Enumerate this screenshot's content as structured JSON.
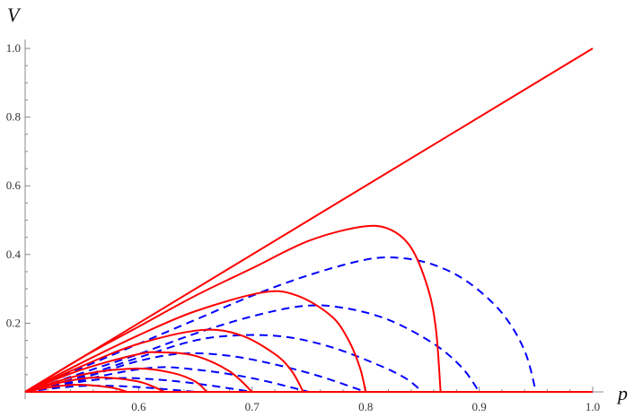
{
  "chart_data": {
    "type": "line",
    "title": "",
    "xlabel": "p",
    "ylabel": "V",
    "xlim": [
      0.5,
      1.0
    ],
    "ylim": [
      0,
      1.0
    ],
    "x_ticks": [
      "0.6",
      "0.7",
      "0.8",
      "0.9",
      "1.0"
    ],
    "y_ticks": [
      "0.2",
      "0.4",
      "0.6",
      "0.8",
      "1.0"
    ],
    "grid": false,
    "colors": {
      "solid": "#ff0000",
      "dashed": "#0000ff",
      "axis": "#888888"
    },
    "series": [
      {
        "style": "solid",
        "color": "#ff0000",
        "points": [
          [
            0.5,
            0
          ],
          [
            1.0,
            1.0
          ]
        ]
      },
      {
        "style": "solid",
        "color": "#ff0000",
        "points": [
          [
            0.5,
            0
          ],
          [
            1.0,
            0
          ]
        ]
      },
      {
        "style": "solid",
        "color": "#ff0000",
        "points": [
          [
            0.5,
            0
          ],
          [
            0.55,
            0.1
          ],
          [
            0.6,
            0.19
          ],
          [
            0.65,
            0.28
          ],
          [
            0.7,
            0.36
          ],
          [
            0.75,
            0.44
          ],
          [
            0.795,
            0.48
          ],
          [
            0.82,
            0.475
          ],
          [
            0.84,
            0.42
          ],
          [
            0.855,
            0.3
          ],
          [
            0.862,
            0.18
          ],
          [
            0.866,
            0
          ]
        ]
      },
      {
        "style": "solid",
        "color": "#ff0000",
        "points": [
          [
            0.5,
            0
          ],
          [
            0.55,
            0.085
          ],
          [
            0.6,
            0.165
          ],
          [
            0.65,
            0.235
          ],
          [
            0.71,
            0.29
          ],
          [
            0.74,
            0.28
          ],
          [
            0.77,
            0.22
          ],
          [
            0.785,
            0.15
          ],
          [
            0.795,
            0.07
          ],
          [
            0.8,
            0
          ]
        ]
      },
      {
        "style": "solid",
        "color": "#ff0000",
        "points": [
          [
            0.5,
            0
          ],
          [
            0.55,
            0.075
          ],
          [
            0.6,
            0.14
          ],
          [
            0.655,
            0.18
          ],
          [
            0.69,
            0.165
          ],
          [
            0.72,
            0.11
          ],
          [
            0.735,
            0.06
          ],
          [
            0.745,
            0
          ]
        ]
      },
      {
        "style": "solid",
        "color": "#ff0000",
        "points": [
          [
            0.5,
            0
          ],
          [
            0.55,
            0.065
          ],
          [
            0.6,
            0.11
          ],
          [
            0.62,
            0.115
          ],
          [
            0.65,
            0.105
          ],
          [
            0.68,
            0.06
          ],
          [
            0.7,
            0
          ]
        ]
      },
      {
        "style": "solid",
        "color": "#ff0000",
        "points": [
          [
            0.5,
            0
          ],
          [
            0.55,
            0.05
          ],
          [
            0.597,
            0.068
          ],
          [
            0.63,
            0.055
          ],
          [
            0.65,
            0.03
          ],
          [
            0.66,
            0
          ]
        ]
      },
      {
        "style": "solid",
        "color": "#ff0000",
        "points": [
          [
            0.5,
            0
          ],
          [
            0.535,
            0.03
          ],
          [
            0.565,
            0.042
          ],
          [
            0.6,
            0.03
          ],
          [
            0.623,
            0
          ]
        ]
      },
      {
        "style": "solid",
        "color": "#ff0000",
        "points": [
          [
            0.5,
            0
          ],
          [
            0.525,
            0.015
          ],
          [
            0.547,
            0.021
          ],
          [
            0.575,
            0.013
          ],
          [
            0.59,
            0
          ]
        ]
      },
      {
        "style": "dashed",
        "color": "#0000ff",
        "points": [
          [
            0.5,
            0
          ],
          [
            0.55,
            0.07
          ],
          [
            0.6,
            0.14
          ],
          [
            0.65,
            0.21
          ],
          [
            0.7,
            0.28
          ],
          [
            0.75,
            0.34
          ],
          [
            0.8,
            0.385
          ],
          [
            0.83,
            0.39
          ],
          [
            0.86,
            0.37
          ],
          [
            0.89,
            0.32
          ],
          [
            0.92,
            0.23
          ],
          [
            0.94,
            0.12
          ],
          [
            0.95,
            0
          ]
        ]
      },
      {
        "style": "dashed",
        "color": "#0000ff",
        "points": [
          [
            0.5,
            0
          ],
          [
            0.55,
            0.055
          ],
          [
            0.6,
            0.11
          ],
          [
            0.65,
            0.17
          ],
          [
            0.7,
            0.22
          ],
          [
            0.745,
            0.25
          ],
          [
            0.78,
            0.245
          ],
          [
            0.82,
            0.21
          ],
          [
            0.86,
            0.14
          ],
          [
            0.885,
            0.07
          ],
          [
            0.9,
            0
          ]
        ]
      },
      {
        "style": "dashed",
        "color": "#0000ff",
        "points": [
          [
            0.5,
            0
          ],
          [
            0.55,
            0.045
          ],
          [
            0.6,
            0.1
          ],
          [
            0.65,
            0.15
          ],
          [
            0.69,
            0.165
          ],
          [
            0.73,
            0.16
          ],
          [
            0.77,
            0.13
          ],
          [
            0.81,
            0.08
          ],
          [
            0.835,
            0.04
          ],
          [
            0.85,
            0
          ]
        ]
      },
      {
        "style": "dashed",
        "color": "#0000ff",
        "points": [
          [
            0.5,
            0
          ],
          [
            0.55,
            0.04
          ],
          [
            0.6,
            0.09
          ],
          [
            0.64,
            0.112
          ],
          [
            0.68,
            0.105
          ],
          [
            0.72,
            0.08
          ],
          [
            0.76,
            0.045
          ],
          [
            0.8,
            0
          ]
        ]
      },
      {
        "style": "dashed",
        "color": "#0000ff",
        "points": [
          [
            0.5,
            0
          ],
          [
            0.55,
            0.035
          ],
          [
            0.61,
            0.07
          ],
          [
            0.65,
            0.065
          ],
          [
            0.7,
            0.04
          ],
          [
            0.75,
            0
          ]
        ]
      },
      {
        "style": "dashed",
        "color": "#0000ff",
        "points": [
          [
            0.5,
            0
          ],
          [
            0.54,
            0.025
          ],
          [
            0.58,
            0.04
          ],
          [
            0.62,
            0.035
          ],
          [
            0.66,
            0.02
          ],
          [
            0.7,
            0
          ]
        ]
      },
      {
        "style": "dashed",
        "color": "#0000ff",
        "points": [
          [
            0.5,
            0
          ],
          [
            0.53,
            0.012
          ],
          [
            0.56,
            0.018
          ],
          [
            0.6,
            0.014
          ],
          [
            0.65,
            0
          ]
        ]
      }
    ]
  }
}
